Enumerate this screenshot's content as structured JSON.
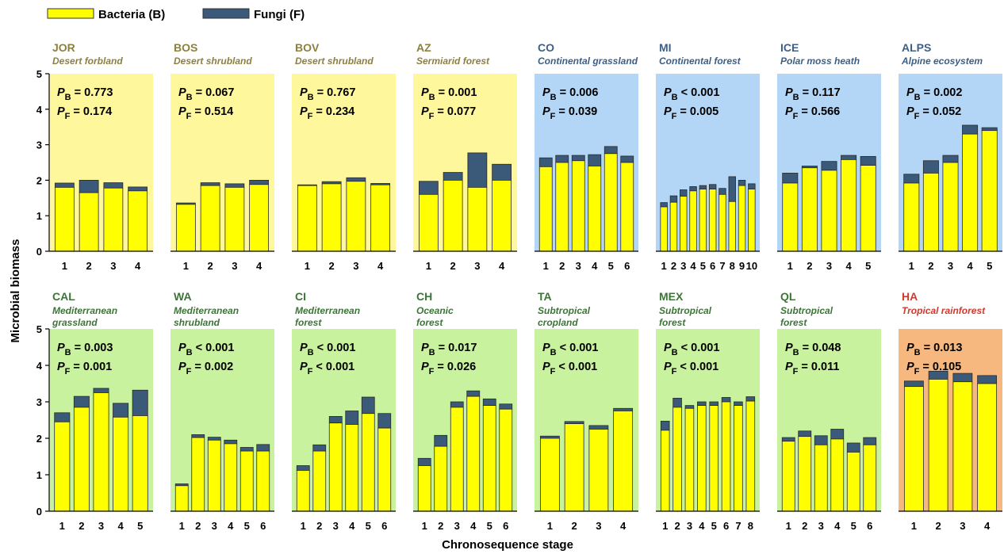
{
  "legend": {
    "bacteria_label": "Bacteria (B)",
    "fungi_label": "Fungi (F)",
    "bacteria_color": "#ffff00",
    "fungi_color": "#3b5978"
  },
  "colors": {
    "desert_bg": "#fff79b",
    "continental_bg": "#b3d6f7",
    "mediterranean_bg": "#c8f29d",
    "tropical_bg": "#f6b87f",
    "desert_text": "#8c8040",
    "continental_text": "#3d5f85",
    "mediterranean_text": "#3d7438",
    "tropical_text": "#d03a2d"
  },
  "axes": {
    "ylabel": "Microbial biomass",
    "xlabel": "Chronosequence stage",
    "ylim": [
      0,
      5
    ],
    "yticks": [
      "0",
      "1",
      "2",
      "3",
      "4",
      "5"
    ]
  },
  "chart_data": [
    {
      "type": "bar",
      "stacked": true,
      "code": "JOR",
      "ecosystem": [
        "Desert forbland"
      ],
      "group": "desert",
      "p_bacteria": "= 0.773",
      "p_fungi": "= 0.174",
      "categories": [
        "1",
        "2",
        "3",
        "4"
      ],
      "series": [
        {
          "name": "Bacteria (B)",
          "values": [
            1.8,
            1.65,
            1.78,
            1.7
          ]
        },
        {
          "name": "Fungi (F)",
          "values": [
            0.12,
            0.35,
            0.15,
            0.11
          ]
        }
      ]
    },
    {
      "type": "bar",
      "stacked": true,
      "code": "BOS",
      "ecosystem": [
        "Desert shrubland"
      ],
      "group": "desert",
      "p_bacteria": "= 0.067",
      "p_fungi": "= 0.514",
      "categories": [
        "1",
        "2",
        "3",
        "4"
      ],
      "series": [
        {
          "name": "Bacteria (B)",
          "values": [
            1.32,
            1.85,
            1.8,
            1.88
          ]
        },
        {
          "name": "Fungi (F)",
          "values": [
            0.04,
            0.08,
            0.1,
            0.12
          ]
        }
      ]
    },
    {
      "type": "bar",
      "stacked": true,
      "code": "BOV",
      "ecosystem": [
        "Desert shrubland"
      ],
      "group": "desert",
      "p_bacteria": "= 0.767",
      "p_fungi": "= 0.234",
      "categories": [
        "1",
        "2",
        "3",
        "4"
      ],
      "series": [
        {
          "name": "Bacteria (B)",
          "values": [
            1.85,
            1.9,
            1.97,
            1.87
          ]
        },
        {
          "name": "Fungi (F)",
          "values": [
            0.02,
            0.06,
            0.1,
            0.04
          ]
        }
      ]
    },
    {
      "type": "bar",
      "stacked": true,
      "code": "AZ",
      "ecosystem": [
        "Sermiarid forest"
      ],
      "group": "desert",
      "p_bacteria": "= 0.001",
      "p_fungi": "= 0.077",
      "categories": [
        "1",
        "2",
        "3",
        "4"
      ],
      "series": [
        {
          "name": "Bacteria (B)",
          "values": [
            1.6,
            2.0,
            1.8,
            2.0
          ]
        },
        {
          "name": "Fungi (F)",
          "values": [
            0.37,
            0.22,
            0.97,
            0.45
          ]
        }
      ]
    },
    {
      "type": "bar",
      "stacked": true,
      "code": "CO",
      "ecosystem": [
        "Continental grassland"
      ],
      "group": "continental",
      "p_bacteria": "= 0.006",
      "p_fungi": "= 0.039",
      "categories": [
        "1",
        "2",
        "3",
        "4",
        "5",
        "6"
      ],
      "series": [
        {
          "name": "Bacteria (B)",
          "values": [
            2.38,
            2.5,
            2.55,
            2.4,
            2.75,
            2.5
          ]
        },
        {
          "name": "Fungi (F)",
          "values": [
            0.25,
            0.2,
            0.15,
            0.32,
            0.2,
            0.18
          ]
        }
      ]
    },
    {
      "type": "bar",
      "stacked": true,
      "code": "MI",
      "ecosystem": [
        "Continental forest"
      ],
      "group": "continental",
      "p_bacteria": "< 0.001",
      "p_fungi": "= 0.005",
      "categories": [
        "1",
        "2",
        "3",
        "4",
        "5",
        "6",
        "7",
        "8",
        "9",
        "10"
      ],
      "series": [
        {
          "name": "Bacteria (B)",
          "values": [
            1.25,
            1.38,
            1.55,
            1.7,
            1.75,
            1.75,
            1.6,
            1.4,
            1.85,
            1.75
          ]
        },
        {
          "name": "Fungi (F)",
          "values": [
            0.12,
            0.18,
            0.18,
            0.12,
            0.1,
            0.13,
            0.17,
            0.7,
            0.15,
            0.15
          ]
        }
      ]
    },
    {
      "type": "bar",
      "stacked": true,
      "code": "ICE",
      "ecosystem": [
        "Polar moss heath"
      ],
      "group": "continental",
      "p_bacteria": "= 0.117",
      "p_fungi": "= 0.566",
      "categories": [
        "1",
        "2",
        "3",
        "4",
        "5"
      ],
      "series": [
        {
          "name": "Bacteria (B)",
          "values": [
            1.92,
            2.35,
            2.28,
            2.58,
            2.42
          ]
        },
        {
          "name": "Fungi (F)",
          "values": [
            0.28,
            0.05,
            0.25,
            0.12,
            0.25
          ]
        }
      ]
    },
    {
      "type": "bar",
      "stacked": true,
      "code": "ALPS",
      "ecosystem": [
        "Alpine ecosystem"
      ],
      "group": "continental",
      "p_bacteria": "= 0.002",
      "p_fungi": "= 0.052",
      "categories": [
        "1",
        "2",
        "3",
        "4",
        "5"
      ],
      "series": [
        {
          "name": "Bacteria (B)",
          "values": [
            1.92,
            2.2,
            2.5,
            3.3,
            3.4
          ]
        },
        {
          "name": "Fungi (F)",
          "values": [
            0.25,
            0.35,
            0.2,
            0.25,
            0.08
          ]
        }
      ]
    },
    {
      "type": "bar",
      "stacked": true,
      "code": "CAL",
      "ecosystem": [
        "Mediterranean",
        "grassland"
      ],
      "group": "mediterranean",
      "p_bacteria": "= 0.003",
      "p_fungi": "= 0.001",
      "categories": [
        "1",
        "2",
        "3",
        "4",
        "5"
      ],
      "series": [
        {
          "name": "Bacteria (B)",
          "values": [
            2.45,
            2.85,
            3.25,
            2.58,
            2.62
          ]
        },
        {
          "name": "Fungi (F)",
          "values": [
            0.25,
            0.3,
            0.12,
            0.38,
            0.7
          ]
        }
      ]
    },
    {
      "type": "bar",
      "stacked": true,
      "code": "WA",
      "ecosystem": [
        "Mediterranean",
        "shrubland"
      ],
      "group": "mediterranean",
      "p_bacteria": "< 0.001",
      "p_fungi": "= 0.002",
      "categories": [
        "1",
        "2",
        "3",
        "4",
        "5",
        "6"
      ],
      "series": [
        {
          "name": "Bacteria (B)",
          "values": [
            0.7,
            2.02,
            1.95,
            1.85,
            1.65,
            1.65
          ]
        },
        {
          "name": "Fungi (F)",
          "values": [
            0.05,
            0.08,
            0.08,
            0.1,
            0.1,
            0.18
          ]
        }
      ]
    },
    {
      "type": "bar",
      "stacked": true,
      "code": "CI",
      "ecosystem": [
        "Mediterranean",
        "forest"
      ],
      "group": "mediterranean",
      "p_bacteria": "< 0.001",
      "p_fungi": "< 0.001",
      "categories": [
        "1",
        "2",
        "3",
        "4",
        "5",
        "6"
      ],
      "series": [
        {
          "name": "Bacteria (B)",
          "values": [
            1.12,
            1.65,
            2.42,
            2.38,
            2.68,
            2.28
          ]
        },
        {
          "name": "Fungi (F)",
          "values": [
            0.13,
            0.17,
            0.18,
            0.37,
            0.45,
            0.4
          ]
        }
      ]
    },
    {
      "type": "bar",
      "stacked": true,
      "code": "CH",
      "ecosystem": [
        "Oceanic",
        "forest"
      ],
      "group": "mediterranean",
      "p_bacteria": "= 0.017",
      "p_fungi": "= 0.026",
      "categories": [
        "1",
        "2",
        "3",
        "4",
        "5",
        "6"
      ],
      "series": [
        {
          "name": "Bacteria (B)",
          "values": [
            1.25,
            1.78,
            2.85,
            3.15,
            2.9,
            2.8
          ]
        },
        {
          "name": "Fungi (F)",
          "values": [
            0.2,
            0.3,
            0.15,
            0.15,
            0.18,
            0.14
          ]
        }
      ]
    },
    {
      "type": "bar",
      "stacked": true,
      "code": "TA",
      "ecosystem": [
        "Subtropical",
        "cropland"
      ],
      "group": "mediterranean",
      "p_bacteria": "< 0.001",
      "p_fungi": "< 0.001",
      "categories": [
        "1",
        "2",
        "3",
        "4"
      ],
      "series": [
        {
          "name": "Bacteria (B)",
          "values": [
            2.0,
            2.4,
            2.25,
            2.75
          ]
        },
        {
          "name": "Fungi (F)",
          "values": [
            0.06,
            0.06,
            0.1,
            0.07
          ]
        }
      ]
    },
    {
      "type": "bar",
      "stacked": true,
      "code": "MEX",
      "ecosystem": [
        "Subtropical",
        "forest"
      ],
      "group": "mediterranean",
      "p_bacteria": "< 0.001",
      "p_fungi": "< 0.001",
      "categories": [
        "1",
        "2",
        "3",
        "4",
        "5",
        "6",
        "7",
        "8"
      ],
      "series": [
        {
          "name": "Bacteria (B)",
          "values": [
            2.22,
            2.85,
            2.82,
            2.9,
            2.9,
            3.0,
            2.9,
            3.02
          ]
        },
        {
          "name": "Fungi (F)",
          "values": [
            0.25,
            0.25,
            0.08,
            0.1,
            0.1,
            0.12,
            0.1,
            0.12
          ]
        }
      ]
    },
    {
      "type": "bar",
      "stacked": true,
      "code": "QL",
      "ecosystem": [
        "Subtropical",
        "forest"
      ],
      "group": "mediterranean",
      "p_bacteria": "= 0.048",
      "p_fungi": "= 0.011",
      "categories": [
        "1",
        "2",
        "3",
        "4",
        "5",
        "6"
      ],
      "series": [
        {
          "name": "Bacteria (B)",
          "values": [
            1.92,
            2.05,
            1.82,
            1.98,
            1.62,
            1.82
          ]
        },
        {
          "name": "Fungi (F)",
          "values": [
            0.1,
            0.15,
            0.25,
            0.27,
            0.25,
            0.2
          ]
        }
      ]
    },
    {
      "type": "bar",
      "stacked": true,
      "code": "HA",
      "ecosystem": [
        "Tropical rainforest"
      ],
      "group": "tropical",
      "p_bacteria": "= 0.013",
      "p_fungi": "= 0.105",
      "categories": [
        "1",
        "2",
        "3",
        "4"
      ],
      "series": [
        {
          "name": "Bacteria (B)",
          "values": [
            3.42,
            3.62,
            3.55,
            3.5
          ]
        },
        {
          "name": "Fungi (F)",
          "values": [
            0.15,
            0.22,
            0.23,
            0.22
          ]
        }
      ]
    }
  ]
}
